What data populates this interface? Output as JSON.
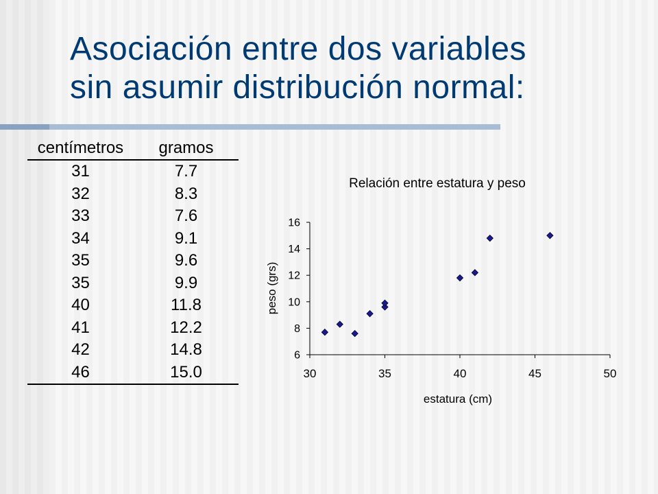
{
  "slide": {
    "title_line1": "Asociación entre dos variables",
    "title_line2": "sin asumir distribución normal:",
    "title_color": "#003a72",
    "accent_bar_color": "#a8bcd6"
  },
  "table": {
    "headers": [
      "centímetros",
      "gramos"
    ],
    "rows": [
      [
        "31",
        "7.7"
      ],
      [
        "32",
        "8.3"
      ],
      [
        "33",
        "7.6"
      ],
      [
        "34",
        "9.1"
      ],
      [
        "35",
        "9.6"
      ],
      [
        "35",
        "9.9"
      ],
      [
        "40",
        "11.8"
      ],
      [
        "41",
        "12.2"
      ],
      [
        "42",
        "14.8"
      ],
      [
        "46",
        "15.0"
      ]
    ]
  },
  "chart_data": {
    "type": "scatter",
    "title": "Relación entre estatura y peso",
    "xlabel": "estatura (cm)",
    "ylabel": "peso (grs)",
    "xlim": [
      30,
      50
    ],
    "ylim": [
      6,
      16
    ],
    "xticks": [
      30,
      35,
      40,
      45,
      50
    ],
    "yticks": [
      6,
      8,
      10,
      12,
      14,
      16
    ],
    "grid": false,
    "legend": "none",
    "marker_color": "#1a1a8c",
    "series": [
      {
        "x": [
          31,
          32,
          33,
          34,
          35,
          35,
          40,
          41,
          42,
          46
        ],
        "y": [
          7.7,
          8.3,
          7.6,
          9.1,
          9.6,
          9.9,
          11.8,
          12.2,
          14.8,
          15.0
        ]
      }
    ]
  }
}
